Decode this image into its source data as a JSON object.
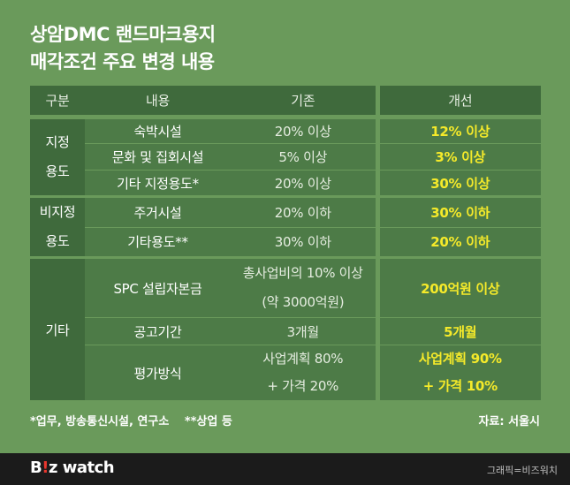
{
  "title": {
    "line1": "상암DMC 랜드마크용지",
    "line2": "매각조건 주요 변경 내용"
  },
  "table": {
    "headers": [
      "구분",
      "내용",
      "기존",
      "개선"
    ],
    "groups": [
      {
        "category_lines": [
          "지정",
          "용도"
        ],
        "rows": [
          {
            "item": "숙박시설",
            "old": "20% 이상",
            "new": "12% 이상"
          },
          {
            "item": "문화 및 집회시설",
            "old": "5% 이상",
            "new": "3% 이상"
          },
          {
            "item": "기타 지정용도*",
            "old": "20% 이상",
            "new": "30% 이상"
          }
        ]
      },
      {
        "category_lines": [
          "비지정",
          "용도"
        ],
        "rows": [
          {
            "item": "주거시설",
            "old": "20% 이하",
            "new": "30% 이하"
          },
          {
            "item": "기타용도**",
            "old": "30% 이하",
            "new": "20% 이하"
          }
        ]
      },
      {
        "category_lines": [
          "기타"
        ],
        "rows": [
          {
            "item": "SPC 설립자본금",
            "old_lines": [
              "총사업비의 10% 이상",
              "(약 3000억원)"
            ],
            "new": "200억원 이상"
          },
          {
            "item": "공고기간",
            "old": "3개월",
            "new": "5개월"
          },
          {
            "item": "평가방식",
            "old_lines": [
              "사업계획 80%",
              "+ 가격 20%"
            ],
            "new_lines": [
              "사업계획 90%",
              "+ 가격 10%"
            ]
          }
        ]
      }
    ]
  },
  "footnote": "*업무, 방송통신시설, 연구소　 **상업 등",
  "source": "자료: 서울시",
  "brand": {
    "logo_main": "B",
    "logo_dot": "!",
    "logo_rest": "z watch"
  },
  "credit": "그래픽=비즈워치",
  "colors": {
    "background": "#6a9a5b",
    "header_cell": "#3f6a3c",
    "body_cell": "#4d7b47",
    "highlight_text": "#f5ea2a",
    "bottom_bar": "#1b1b1b"
  }
}
